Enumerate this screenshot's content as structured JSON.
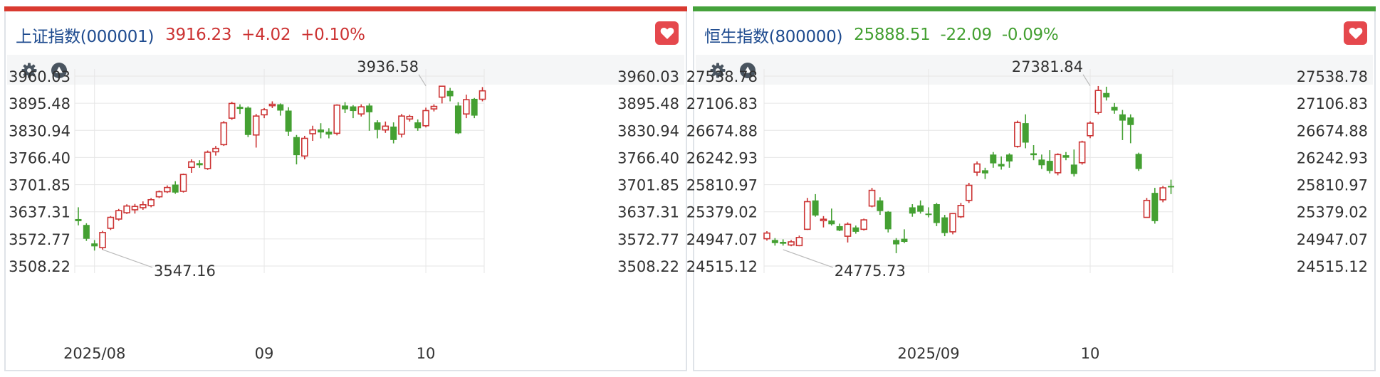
{
  "colors": {
    "up": "#cc3333",
    "down": "#44a032",
    "name": "#1e4b8f",
    "bar_left": "#d93a30",
    "bar_right": "#45a23b",
    "heart": "#e5484d",
    "grid": "#e6e6e6",
    "text": "#333333"
  },
  "panels": [
    {
      "name": "上证指数(000001)",
      "price": "3916.23",
      "change": "+4.02",
      "change_pct": "+0.10%",
      "direction": "up",
      "icons": [
        "gear-icon",
        "triangle-up-icon",
        "heart-icon"
      ]
    },
    {
      "name": "恒生指数(800000)",
      "price": "25888.51",
      "change": "-22.09",
      "change_pct": "-0.09%",
      "direction": "down",
      "icons": [
        "gear-icon",
        "triangle-up-icon",
        "heart-icon"
      ]
    }
  ],
  "chart_data": [
    {
      "type": "candlestick",
      "title": "上证指数(000001)",
      "y_ticks": [
        "3960.03",
        "3895.48",
        "3830.94",
        "3766.40",
        "3701.85",
        "3637.31",
        "3572.77",
        "3508.22"
      ],
      "ylim": [
        3508.22,
        3960.03
      ],
      "x_labels": [
        {
          "label": "2025/08",
          "index": 2
        },
        {
          "label": "09",
          "index": 23
        },
        {
          "label": "10",
          "index": 43
        }
      ],
      "annotations": [
        {
          "label": "3936.58",
          "index": 43,
          "value": 3936.58,
          "kind": "high"
        },
        {
          "label": "3547.16",
          "index": 3,
          "value": 3547.16,
          "kind": "low"
        }
      ],
      "candles": [
        [
          3620,
          3615,
          3648,
          3605
        ],
        [
          3606,
          3573,
          3610,
          3568
        ],
        [
          3562,
          3555,
          3570,
          3545
        ],
        [
          3552,
          3588,
          3592,
          3547
        ],
        [
          3598,
          3624,
          3627,
          3594
        ],
        [
          3620,
          3640,
          3644,
          3616
        ],
        [
          3635,
          3651,
          3655,
          3632
        ],
        [
          3642,
          3650,
          3656,
          3633
        ],
        [
          3647,
          3654,
          3662,
          3642
        ],
        [
          3652,
          3666,
          3670,
          3648
        ],
        [
          3673,
          3685,
          3688,
          3670
        ],
        [
          3685,
          3695,
          3700,
          3682
        ],
        [
          3702,
          3683,
          3710,
          3680
        ],
        [
          3686,
          3726,
          3728,
          3683
        ],
        [
          3743,
          3756,
          3762,
          3730
        ],
        [
          3753,
          3748,
          3760,
          3742
        ],
        [
          3740,
          3779,
          3783,
          3737
        ],
        [
          3780,
          3788,
          3794,
          3771
        ],
        [
          3797,
          3849,
          3853,
          3794
        ],
        [
          3860,
          3895,
          3899,
          3856
        ],
        [
          3887,
          3882,
          3893,
          3870
        ],
        [
          3885,
          3820,
          3888,
          3815
        ],
        [
          3820,
          3865,
          3870,
          3790
        ],
        [
          3868,
          3880,
          3884,
          3860
        ],
        [
          3890,
          3893,
          3900,
          3884
        ],
        [
          3893,
          3878,
          3895,
          3866
        ],
        [
          3878,
          3828,
          3886,
          3818
        ],
        [
          3815,
          3772,
          3820,
          3750
        ],
        [
          3770,
          3812,
          3818,
          3762
        ],
        [
          3823,
          3832,
          3842,
          3806
        ],
        [
          3833,
          3826,
          3848,
          3812
        ],
        [
          3828,
          3821,
          3836,
          3812
        ],
        [
          3824,
          3891,
          3893,
          3819
        ],
        [
          3890,
          3881,
          3898,
          3872
        ],
        [
          3888,
          3877,
          3891,
          3860
        ],
        [
          3870,
          3887,
          3893,
          3864
        ],
        [
          3890,
          3874,
          3895,
          3830
        ],
        [
          3850,
          3832,
          3855,
          3812
        ],
        [
          3832,
          3841,
          3852,
          3825
        ],
        [
          3840,
          3808,
          3850,
          3800
        ],
        [
          3822,
          3865,
          3870,
          3814
        ],
        [
          3858,
          3864,
          3868,
          3852
        ],
        [
          3850,
          3836,
          3857,
          3830
        ],
        [
          3842,
          3878,
          3885,
          3838
        ],
        [
          3882,
          3888,
          3893,
          3876
        ],
        [
          3910,
          3936,
          3937,
          3895
        ],
        [
          3925,
          3912,
          3932,
          3900
        ],
        [
          3890,
          3824,
          3898,
          3822
        ],
        [
          3870,
          3904,
          3916,
          3860
        ],
        [
          3906,
          3866,
          3908,
          3860
        ],
        [
          3905,
          3925,
          3934,
          3900
        ]
      ]
    },
    {
      "type": "candlestick",
      "title": "恒生指数(800000)",
      "y_ticks": [
        "27538.78",
        "27106.83",
        "26674.88",
        "26242.93",
        "25810.97",
        "25379.02",
        "24947.07",
        "24515.12"
      ],
      "ylim": [
        24515.12,
        27538.78
      ],
      "x_labels": [
        {
          "label": "2025/09",
          "index": 20
        },
        {
          "label": "10",
          "index": 40
        }
      ],
      "annotations": [
        {
          "label": "27381.84",
          "index": 40,
          "value": 27381.84,
          "kind": "high"
        },
        {
          "label": "24775.73",
          "index": 2,
          "value": 24775.73,
          "kind": "low"
        }
      ],
      "candles": [
        [
          24950,
          25040,
          25070,
          24920
        ],
        [
          24930,
          24880,
          24960,
          24840
        ],
        [
          24900,
          24870,
          24940,
          24840
        ],
        [
          24850,
          24900,
          24930,
          24830
        ],
        [
          24840,
          24970,
          25000,
          24830
        ],
        [
          25100,
          25540,
          25600,
          25090
        ],
        [
          25560,
          25320,
          25660,
          25300
        ],
        [
          25240,
          25260,
          25310,
          25130
        ],
        [
          25240,
          25180,
          25430,
          25160
        ],
        [
          25150,
          25080,
          25190,
          25070
        ],
        [
          24990,
          25180,
          25210,
          24890
        ],
        [
          25130,
          25060,
          25160,
          25030
        ],
        [
          25100,
          25250,
          25270,
          25080
        ],
        [
          25470,
          25720,
          25760,
          25450
        ],
        [
          25560,
          25390,
          25610,
          25330
        ],
        [
          25380,
          25100,
          25390,
          25050
        ],
        [
          24930,
          24860,
          24960,
          24720
        ],
        [
          24950,
          24900,
          25100,
          24880
        ],
        [
          25450,
          25350,
          25500,
          25300
        ],
        [
          25480,
          25380,
          25560,
          25350
        ],
        [
          25350,
          25330,
          25450,
          25290
        ],
        [
          25500,
          25200,
          25520,
          25150
        ],
        [
          25290,
          25040,
          25330,
          24990
        ],
        [
          25060,
          25350,
          25360,
          25020
        ],
        [
          25300,
          25480,
          25520,
          25280
        ],
        [
          25560,
          25800,
          25840,
          25520
        ],
        [
          26010,
          26140,
          26180,
          25950
        ],
        [
          26040,
          25990,
          26080,
          25900
        ],
        [
          26290,
          26150,
          26330,
          26080
        ],
        [
          26140,
          26100,
          26260,
          26050
        ],
        [
          26290,
          26180,
          26310,
          26080
        ],
        [
          26420,
          26800,
          26830,
          26400
        ],
        [
          26790,
          26480,
          26930,
          26390
        ],
        [
          26310,
          26280,
          26440,
          26200
        ],
        [
          26210,
          26120,
          26290,
          26060
        ],
        [
          26190,
          26030,
          26360,
          25990
        ],
        [
          26000,
          26290,
          26310,
          25960
        ],
        [
          26280,
          26240,
          26330,
          26200
        ],
        [
          26130,
          25980,
          26370,
          25940
        ],
        [
          26160,
          26490,
          26510,
          26130
        ],
        [
          26590,
          26790,
          26820,
          26550
        ],
        [
          26960,
          27310,
          27381,
          26930
        ],
        [
          27270,
          27200,
          27370,
          27150
        ],
        [
          27050,
          26990,
          27110,
          26940
        ],
        [
          26930,
          26830,
          27000,
          26520
        ],
        [
          26880,
          26760,
          26930,
          26470
        ],
        [
          26300,
          26060,
          26320,
          26030
        ],
        [
          25290,
          25560,
          25600,
          25300
        ],
        [
          25680,
          25230,
          25760,
          25190
        ],
        [
          25570,
          25760,
          25790,
          25530
        ],
        [
          25790,
          25780,
          25890,
          25660
        ]
      ]
    }
  ]
}
